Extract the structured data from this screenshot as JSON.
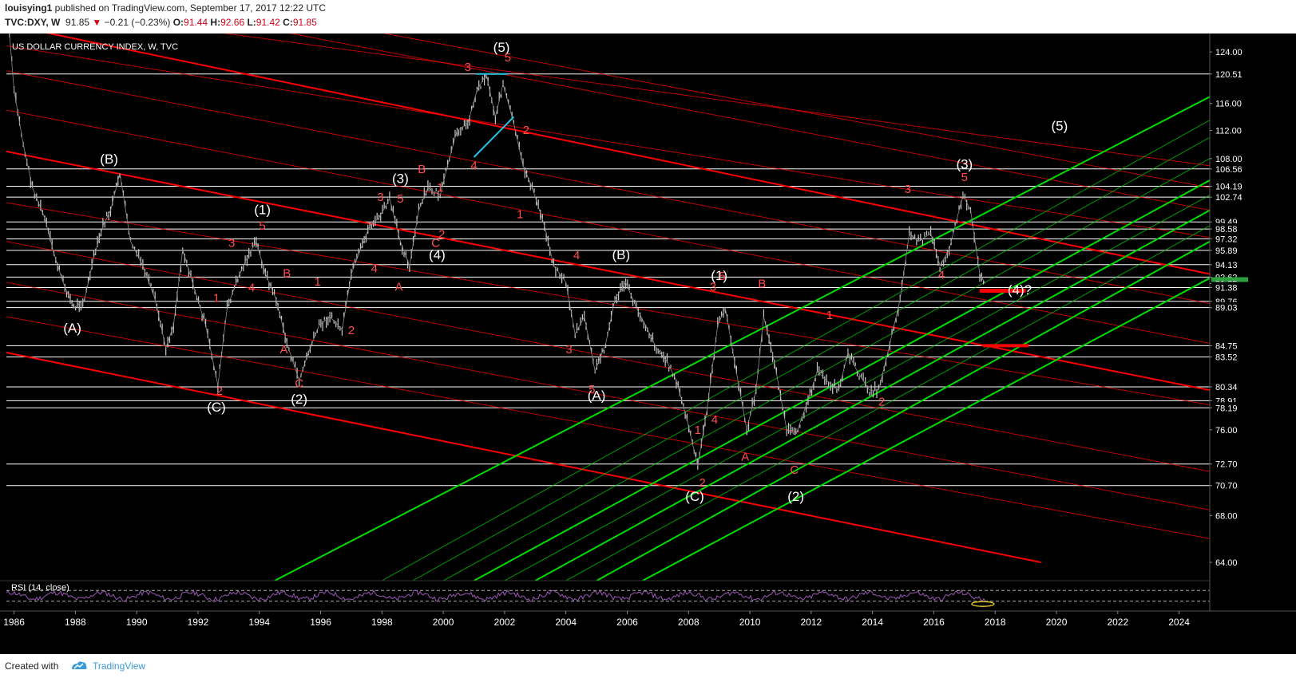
{
  "header": {
    "author": "louisying1",
    "published_text": " published on TradingView.com, September 17, 2017 12:22 UTC",
    "symbol": "TVC:DXY, W",
    "last": "91.85",
    "change": "−0.21 (−0.23%)",
    "open_label": "O:",
    "open": "91.44",
    "high_label": "H:",
    "high": "92.66",
    "low_label": "L:",
    "low": "91.42",
    "close_label": "C:",
    "close": "91.85"
  },
  "footer": {
    "created_with": "Created with",
    "brand": "TradingView"
  },
  "colors": {
    "background": "#000000",
    "price_bar": "#c8c8c8",
    "channel_red": "#ff0000",
    "channel_green": "#00dd00",
    "wave_label_red": "#ff4d4d",
    "wave_label_white": "#ffffff",
    "rsi_line": "#9b59b6",
    "highlight": "#25c5e8",
    "last_price_badge": "#2e9f3e"
  },
  "chart_data": {
    "type": "line",
    "title": "US DOLLAR CURRENCY INDEX, W, TVC",
    "xlabel": "",
    "ylabel": "",
    "x_ticks": [
      "1986",
      "1988",
      "1990",
      "1992",
      "1994",
      "1996",
      "1998",
      "2000",
      "2002",
      "2004",
      "2006",
      "2008",
      "2010",
      "2012",
      "2014",
      "2016",
      "2018",
      "2020",
      "2022",
      "2024"
    ],
    "xlim": [
      1985.75,
      2025
    ],
    "ylim": [
      62.5,
      127
    ],
    "y_scale": "log",
    "y_ticks": [
      "124.00",
      "120.51",
      "116.00",
      "112.00",
      "108.00",
      "106.56",
      "104.19",
      "104.19",
      "102.74",
      "99.49",
      "98.58",
      "97.32",
      "95.89",
      "94.13",
      "92.62",
      "91.85",
      "91.38",
      "89.76",
      "89.03",
      "84.75",
      "83.52",
      "83.52",
      "80.34",
      "78.91",
      "78.19",
      "76.00",
      "72.70",
      "70.70",
      "68.00",
      "64.00"
    ],
    "series": [
      {
        "x": [
          1985.85,
          1986.0,
          1986.3,
          1986.6,
          1987.0,
          1987.3,
          1987.6,
          1987.95,
          1988.3,
          1988.6,
          1988.9,
          1989.15,
          1989.45,
          1989.8,
          1990.2,
          1990.6,
          1990.95,
          1991.2,
          1991.5,
          1991.9,
          1992.25,
          1992.65,
          1992.95,
          1993.3,
          1993.6,
          1993.9,
          1994.2,
          1994.55,
          1994.9,
          1995.3,
          1995.6,
          1995.95,
          1996.3,
          1996.7,
          1997.0,
          1997.3,
          1997.6,
          1997.9,
          1998.25,
          1998.6,
          1998.9,
          1999.2,
          1999.5,
          1999.9,
          2000.2,
          2000.45,
          2000.8,
          2001.1,
          2001.4,
          2001.7,
          2001.95,
          2002.3,
          2002.6,
          2002.9,
          2003.3,
          2003.6,
          2004.0,
          2004.3,
          2004.6,
          2004.95,
          2005.3,
          2005.6,
          2005.95,
          2006.3,
          2006.6,
          2006.95,
          2007.3,
          2007.6,
          2007.95,
          2008.3,
          2008.6,
          2008.95,
          2009.2,
          2009.5,
          2009.9,
          2010.2,
          2010.45,
          2010.8,
          2011.2,
          2011.5,
          2011.9,
          2012.2,
          2012.5,
          2012.9,
          2013.2,
          2013.5,
          2013.9,
          2014.2,
          2014.5,
          2014.9,
          2015.2,
          2015.5,
          2015.9,
          2016.2,
          2016.5,
          2016.95,
          2017.2,
          2017.5,
          2017.68
        ],
        "values": [
          127,
          118,
          110,
          104,
          100,
          95.5,
          92,
          89,
          90,
          95,
          99,
          101,
          106,
          97,
          94,
          90,
          84.5,
          87,
          96,
          91,
          87,
          80.5,
          89,
          92.5,
          95,
          97,
          93,
          90,
          85,
          81,
          84,
          87,
          88,
          86.5,
          93,
          96,
          99,
          100,
          102.5,
          97,
          94,
          101,
          104,
          103,
          108,
          112,
          113,
          118,
          120.5,
          114,
          119,
          113,
          107,
          104,
          99,
          94,
          92,
          86,
          88,
          82,
          85,
          90,
          92,
          89,
          87,
          84.5,
          83,
          81,
          77,
          72.5,
          78,
          87,
          89,
          83,
          76,
          80,
          88,
          83,
          76,
          75.5,
          79,
          82,
          81,
          80,
          84,
          82,
          80,
          80,
          84,
          90,
          98,
          97,
          98,
          94,
          96,
          103,
          101,
          93,
          91.85
        ]
      }
    ],
    "hlines": [
      120.51,
      106.56,
      104.19,
      102.74,
      99.49,
      98.58,
      97.32,
      95.89,
      94.13,
      92.62,
      91.38,
      89.76,
      89.03,
      84.75,
      83.52,
      80.34,
      78.91,
      78.19,
      72.7,
      70.7
    ],
    "red_channels": [
      {
        "x1": 1985.75,
        "y1": 84.0,
        "x2": 2019.5,
        "y2": 64.0
      },
      {
        "x1": 1985.75,
        "y1": 109.0,
        "x2": 2025,
        "y2": 80.0
      },
      {
        "x1": 1985.75,
        "y1": 128.5,
        "x2": 2025,
        "y2": 93.0
      },
      {
        "x1": 1990.0,
        "y1": 129.0,
        "x2": 2025,
        "y2": 107.0
      },
      {
        "x1": 1985.75,
        "y1": 102.0,
        "x2": 2025,
        "y2": 78.5
      },
      {
        "x1": 1985.75,
        "y1": 97.0,
        "x2": 2025,
        "y2": 72.0
      },
      {
        "x1": 1985.75,
        "y1": 92.0,
        "x2": 2025,
        "y2": 68.5
      },
      {
        "x1": 1985.75,
        "y1": 88.0,
        "x2": 2025,
        "y2": 66.0
      },
      {
        "x1": 1985.75,
        "y1": 115.0,
        "x2": 2025,
        "y2": 85.0
      },
      {
        "x1": 1985.75,
        "y1": 121.0,
        "x2": 2025,
        "y2": 89.5
      },
      {
        "x1": 1985.75,
        "y1": 125.0,
        "x2": 2025,
        "y2": 97.5
      },
      {
        "x1": 1993.0,
        "y1": 129.0,
        "x2": 2025,
        "y2": 101.0
      },
      {
        "x1": 1996.0,
        "y1": 129.0,
        "x2": 2025,
        "y2": 104.0
      }
    ],
    "green_channels": [
      {
        "x1": 1994.5,
        "y1": 62.5,
        "x2": 2025,
        "y2": 117.0
      },
      {
        "x1": 2001.0,
        "y1": 62.5,
        "x2": 2025,
        "y2": 105.0
      },
      {
        "x1": 2003.0,
        "y1": 62.5,
        "x2": 2025,
        "y2": 101.0
      },
      {
        "x1": 2005.0,
        "y1": 62.5,
        "x2": 2025,
        "y2": 97.0
      },
      {
        "x1": 2006.5,
        "y1": 62.5,
        "x2": 2025,
        "y2": 92.5
      },
      {
        "x1": 2002.0,
        "y1": 62.5,
        "x2": 2025,
        "y2": 103.0
      },
      {
        "x1": 2004.0,
        "y1": 62.5,
        "x2": 2025,
        "y2": 99.0
      },
      {
        "x1": 2000.0,
        "y1": 62.5,
        "x2": 2025,
        "y2": 108.0
      },
      {
        "x1": 1999.0,
        "y1": 62.5,
        "x2": 2025,
        "y2": 111.0
      },
      {
        "x1": 1998.0,
        "y1": 62.5,
        "x2": 2025,
        "y2": 113.5
      }
    ],
    "wave_labels": [
      {
        "text": "(A)",
        "x": 1987.9,
        "y": 86.2,
        "color": "white"
      },
      {
        "text": "(B)",
        "x": 1989.1,
        "y": 107.3,
        "color": "white"
      },
      {
        "text": "(C)",
        "x": 1992.6,
        "y": 77.8,
        "color": "white"
      },
      {
        "text": "(1)",
        "x": 1994.1,
        "y": 100.5,
        "color": "white"
      },
      {
        "text": "(2)",
        "x": 1995.3,
        "y": 78.6,
        "color": "white"
      },
      {
        "text": "(3)",
        "x": 1998.6,
        "y": 104.6,
        "color": "white"
      },
      {
        "text": "(4)",
        "x": 1999.8,
        "y": 94.8,
        "color": "white"
      },
      {
        "text": "(5)",
        "x": 2001.9,
        "y": 124.0,
        "color": "white"
      },
      {
        "text": "(A)",
        "x": 2005.0,
        "y": 79.0,
        "color": "white"
      },
      {
        "text": "(B)",
        "x": 2005.8,
        "y": 94.8,
        "color": "white"
      },
      {
        "text": "(C)",
        "x": 2008.2,
        "y": 69.3,
        "color": "white"
      },
      {
        "text": "(1)",
        "x": 2009.0,
        "y": 92.3,
        "color": "white"
      },
      {
        "text": "(2)",
        "x": 2011.5,
        "y": 69.3,
        "color": "white"
      },
      {
        "text": "(3)",
        "x": 2017.0,
        "y": 106.6,
        "color": "white"
      },
      {
        "text": "(4)?",
        "x": 2018.8,
        "y": 90.6,
        "color": "white"
      },
      {
        "text": "(5)",
        "x": 2020.1,
        "y": 112.0,
        "color": "white"
      },
      {
        "text": "3",
        "x": 2000.8,
        "y": 121.0,
        "color": "red"
      },
      {
        "text": "5",
        "x": 2002.1,
        "y": 122.5,
        "color": "red"
      },
      {
        "text": "4",
        "x": 2001.0,
        "y": 106.5,
        "color": "red"
      },
      {
        "text": "2",
        "x": 2002.7,
        "y": 111.5,
        "color": "red"
      },
      {
        "text": "1",
        "x": 2002.5,
        "y": 100.0,
        "color": "red"
      },
      {
        "text": "B",
        "x": 1999.3,
        "y": 106.0,
        "color": "red"
      },
      {
        "text": "1",
        "x": 1999.9,
        "y": 103.5,
        "color": "red"
      },
      {
        "text": "5",
        "x": 1998.6,
        "y": 102.0,
        "color": "red"
      },
      {
        "text": "3",
        "x": 1997.95,
        "y": 102.2,
        "color": "red"
      },
      {
        "text": "2",
        "x": 1999.95,
        "y": 97.4,
        "color": "red"
      },
      {
        "text": "C",
        "x": 1999.75,
        "y": 96.3,
        "color": "red"
      },
      {
        "text": "4",
        "x": 1997.75,
        "y": 93.2,
        "color": "red"
      },
      {
        "text": "A",
        "x": 1998.55,
        "y": 91.0,
        "color": "red"
      },
      {
        "text": "5",
        "x": 1994.1,
        "y": 98.5,
        "color": "red"
      },
      {
        "text": "3",
        "x": 1993.1,
        "y": 96.3,
        "color": "red"
      },
      {
        "text": "4",
        "x": 1993.75,
        "y": 90.9,
        "color": "red"
      },
      {
        "text": "B",
        "x": 1994.9,
        "y": 92.6,
        "color": "red"
      },
      {
        "text": "1",
        "x": 1995.9,
        "y": 91.6,
        "color": "red"
      },
      {
        "text": "1",
        "x": 1992.6,
        "y": 89.7,
        "color": "red"
      },
      {
        "text": "A",
        "x": 1994.8,
        "y": 83.9,
        "color": "red"
      },
      {
        "text": "2",
        "x": 1997.0,
        "y": 86.0,
        "color": "red"
      },
      {
        "text": "C",
        "x": 1995.3,
        "y": 80.3,
        "color": "red"
      },
      {
        "text": "2",
        "x": 1992.7,
        "y": 79.5,
        "color": "red"
      },
      {
        "text": "4",
        "x": 2004.35,
        "y": 94.8,
        "color": "red"
      },
      {
        "text": "3",
        "x": 2004.1,
        "y": 83.9,
        "color": "red"
      },
      {
        "text": "5",
        "x": 2004.85,
        "y": 79.7,
        "color": "red"
      },
      {
        "text": "3",
        "x": 2008.8,
        "y": 91.0,
        "color": "red"
      },
      {
        "text": "5",
        "x": 2009.1,
        "y": 92.3,
        "color": "red"
      },
      {
        "text": "4",
        "x": 2008.85,
        "y": 76.6,
        "color": "red"
      },
      {
        "text": "1",
        "x": 2008.3,
        "y": 75.6,
        "color": "red"
      },
      {
        "text": "2",
        "x": 2008.45,
        "y": 70.6,
        "color": "red"
      },
      {
        "text": "B",
        "x": 2010.4,
        "y": 91.4,
        "color": "red"
      },
      {
        "text": "A",
        "x": 2009.85,
        "y": 73.0,
        "color": "red"
      },
      {
        "text": "C",
        "x": 2011.45,
        "y": 71.8,
        "color": "red"
      },
      {
        "text": "1",
        "x": 2012.6,
        "y": 87.7,
        "color": "red"
      },
      {
        "text": "2",
        "x": 2014.3,
        "y": 78.4,
        "color": "red"
      },
      {
        "text": "3",
        "x": 2015.15,
        "y": 103.3,
        "color": "red"
      },
      {
        "text": "5",
        "x": 2017.0,
        "y": 104.9,
        "color": "red"
      },
      {
        "text": "4",
        "x": 2016.25,
        "y": 92.4,
        "color": "red"
      }
    ],
    "rsi": {
      "label": "RSI (14, close)",
      "upper": 70,
      "lower": 30
    }
  }
}
